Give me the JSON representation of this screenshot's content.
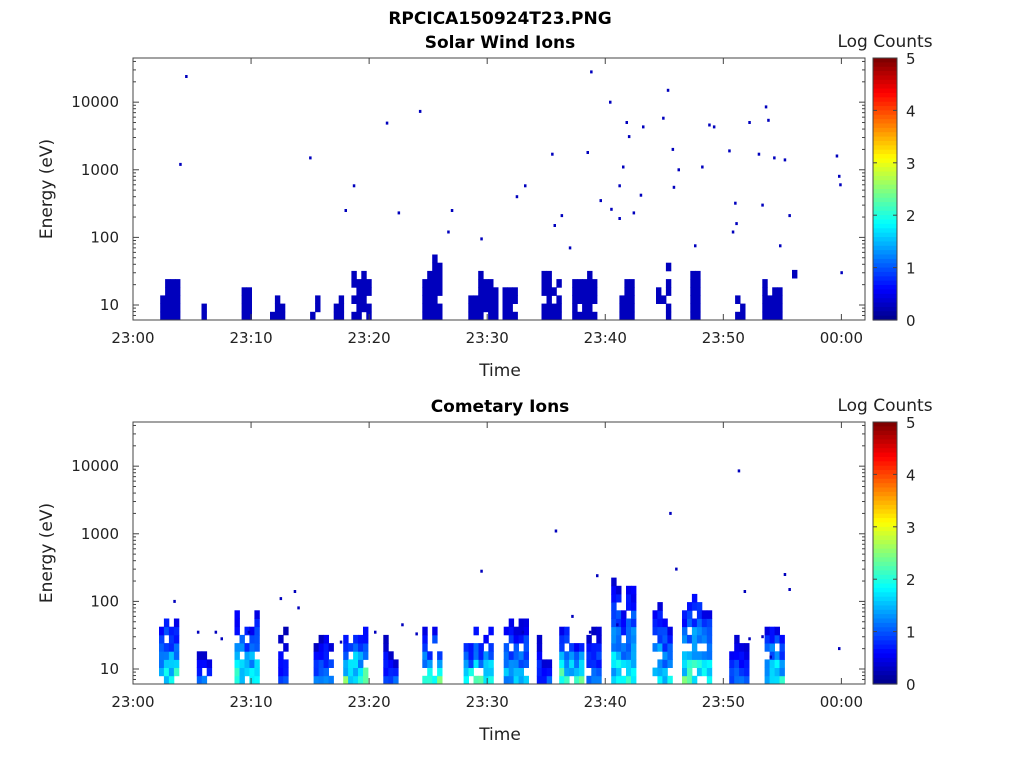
{
  "figure": {
    "title": "RPCICA150924T23.PNG"
  },
  "colorbar": {
    "label": "Log Counts",
    "ticks": [
      "5",
      "4",
      "3",
      "2",
      "1",
      "0"
    ],
    "colormap": "jet"
  },
  "chart_data": [
    {
      "type": "heatmap",
      "title": "Solar Wind Ions",
      "xlabel": "Time",
      "ylabel": "Energy (eV)",
      "xticks": [
        "23:00",
        "23:10",
        "23:20",
        "23:30",
        "23:40",
        "23:50",
        "00:00"
      ],
      "yticks": [
        "10",
        "100",
        "1000",
        "10000"
      ],
      "yscale": "log",
      "xlim_minutes": [
        0,
        62
      ],
      "ylim_eV": [
        6,
        45000
      ],
      "clim": [
        0,
        5
      ],
      "points": [
        [
          4.5,
          24000,
          0.3
        ],
        [
          4,
          1200,
          0.3
        ],
        [
          15,
          1500,
          0.3
        ],
        [
          18,
          250,
          0.3
        ],
        [
          18.7,
          580,
          0.3
        ],
        [
          21.5,
          4900,
          0.3
        ],
        [
          22.5,
          230,
          0.3
        ],
        [
          24.3,
          7300,
          0.3
        ],
        [
          27,
          250,
          0.3
        ],
        [
          26.7,
          120,
          0.3
        ],
        [
          29.5,
          95,
          0.3
        ],
        [
          32.5,
          400,
          0.3
        ],
        [
          33.2,
          580,
          0.3
        ],
        [
          35.5,
          1700,
          0.3
        ],
        [
          35.7,
          150,
          0.3
        ],
        [
          36.3,
          210,
          0.3
        ],
        [
          37,
          70,
          0.3
        ],
        [
          38.5,
          1800,
          0.3
        ],
        [
          38.8,
          28000,
          0.3
        ],
        [
          39.6,
          350,
          0.3
        ],
        [
          40.5,
          260,
          0.3
        ],
        [
          40.4,
          10000,
          0.3
        ],
        [
          41.2,
          580,
          0.3
        ],
        [
          41.5,
          1100,
          0.3
        ],
        [
          41.8,
          5000,
          0.3
        ],
        [
          42,
          3100,
          0.3
        ],
        [
          42.4,
          230,
          0.3
        ],
        [
          43.0,
          420,
          0.3
        ],
        [
          43.2,
          4300,
          0.3
        ],
        [
          41.2,
          190,
          0.3
        ],
        [
          44.9,
          5800,
          0.3
        ],
        [
          45.3,
          15000,
          0.3
        ],
        [
          45.7,
          2000,
          0.3
        ],
        [
          45.8,
          550,
          0.3
        ],
        [
          46.2,
          1000,
          0.3
        ],
        [
          47.6,
          75,
          0.3
        ],
        [
          48.2,
          1100,
          0.3
        ],
        [
          48.8,
          4600,
          0.3
        ],
        [
          49.2,
          4300,
          0.3
        ],
        [
          50.5,
          1900,
          0.3
        ],
        [
          50.8,
          120,
          0.3
        ],
        [
          51.1,
          160,
          0.3
        ],
        [
          51.0,
          320,
          0.3
        ],
        [
          52.2,
          5000,
          0.3
        ],
        [
          53.0,
          1700,
          0.3
        ],
        [
          53.3,
          300,
          0.3
        ],
        [
          53.6,
          8500,
          0.3
        ],
        [
          53.8,
          5400,
          0.3
        ],
        [
          54.3,
          1500,
          0.3
        ],
        [
          54.8,
          75,
          0.3
        ],
        [
          55.2,
          1400,
          0.3
        ],
        [
          55.6,
          210,
          0.3
        ],
        [
          59.6,
          1600,
          0.3
        ],
        [
          59.8,
          800,
          0.3
        ],
        [
          59.9,
          600,
          0.3
        ],
        [
          60.0,
          30,
          0.3
        ]
      ],
      "bursts": [
        [
          2.3,
          1.3,
          6,
          25,
          0.3
        ],
        [
          5.8,
          0.4,
          6,
          12,
          0.3
        ],
        [
          9.2,
          0.6,
          6,
          24,
          0.3
        ],
        [
          11.6,
          1.0,
          6,
          12,
          0.3
        ],
        [
          15.0,
          0.5,
          6,
          12,
          0.3
        ],
        [
          17.0,
          0.8,
          6,
          20,
          0.3
        ],
        [
          18.5,
          1.6,
          6,
          28,
          0.3
        ],
        [
          24.5,
          1.5,
          6,
          55,
          0.3
        ],
        [
          28.4,
          2.3,
          6,
          36,
          0.3
        ],
        [
          31.3,
          1.2,
          6,
          18,
          0.3
        ],
        [
          34.6,
          1.3,
          6,
          27,
          0.3
        ],
        [
          37.2,
          1.8,
          6,
          28,
          0.3
        ],
        [
          41.2,
          0.9,
          6,
          30,
          0.3
        ],
        [
          44.3,
          1.0,
          6,
          40,
          0.3
        ],
        [
          47.2,
          0.8,
          6,
          30,
          0.3
        ],
        [
          51.0,
          0.5,
          6,
          16,
          0.3
        ],
        [
          53.3,
          1.6,
          6,
          24,
          0.3
        ],
        [
          55.4,
          0.8,
          25,
          45,
          0.3
        ],
        [
          49.6,
          0.6,
          25,
          32,
          0.3
        ]
      ]
    },
    {
      "type": "heatmap",
      "title": "Cometary Ions",
      "xlabel": "Time",
      "ylabel": "Energy (eV)",
      "xticks": [
        "23:00",
        "23:10",
        "23:20",
        "23:30",
        "23:40",
        "23:50",
        "00:00"
      ],
      "yticks": [
        "10",
        "100",
        "1000",
        "10000"
      ],
      "yscale": "log",
      "xlim_minutes": [
        0,
        62
      ],
      "ylim_eV": [
        6,
        45000
      ],
      "clim": [
        0,
        5
      ],
      "points": [
        [
          3.5,
          100,
          0.3
        ],
        [
          5.5,
          35,
          0.3
        ],
        [
          7,
          35,
          0.3
        ],
        [
          7.5,
          28,
          0.3
        ],
        [
          9.8,
          35,
          0.3
        ],
        [
          12.5,
          110,
          0.3
        ],
        [
          13.7,
          140,
          0.3
        ],
        [
          14,
          80,
          0.3
        ],
        [
          17.6,
          25,
          0.3
        ],
        [
          20.5,
          35,
          0.3
        ],
        [
          22.8,
          45,
          0.3
        ],
        [
          24.0,
          33,
          0.3
        ],
        [
          29.5,
          280,
          0.3
        ],
        [
          33.0,
          35,
          0.3
        ],
        [
          35.8,
          1100,
          0.3
        ],
        [
          37.2,
          60,
          0.3
        ],
        [
          38.7,
          35,
          0.3
        ],
        [
          39.3,
          240,
          0.3
        ],
        [
          41.0,
          45,
          0.3
        ],
        [
          45.5,
          2000,
          0.3
        ],
        [
          46.0,
          300,
          0.3
        ],
        [
          51.3,
          8500,
          0.3
        ],
        [
          51.8,
          140,
          0.3
        ],
        [
          52.2,
          28,
          0.3
        ],
        [
          53.3,
          30,
          0.3
        ],
        [
          54.0,
          15,
          0.3
        ],
        [
          55.2,
          250,
          0.3
        ],
        [
          55.6,
          150,
          0.3
        ],
        [
          59.8,
          20,
          0.3
        ]
      ],
      "bursts": [
        [
          2.2,
          1.5,
          6,
          62,
          1.6
        ],
        [
          5.4,
          1.2,
          6,
          22,
          0.9
        ],
        [
          8.6,
          1.8,
          6,
          100,
          1.6
        ],
        [
          12.3,
          0.6,
          6,
          40,
          0.8
        ],
        [
          15.3,
          1.4,
          6,
          38,
          1.0
        ],
        [
          17.8,
          1.8,
          6,
          45,
          1.8
        ],
        [
          21.2,
          1.1,
          6,
          28,
          0.8
        ],
        [
          24.5,
          1.6,
          6,
          42,
          1.7
        ],
        [
          28.0,
          2.2,
          6,
          55,
          1.6
        ],
        [
          31.4,
          1.8,
          6,
          50,
          1.3
        ],
        [
          34.2,
          1.2,
          6,
          28,
          0.8
        ],
        [
          36.1,
          1.9,
          6,
          45,
          1.8
        ],
        [
          38.4,
          1.0,
          6,
          45,
          1.0
        ],
        [
          40.5,
          1.8,
          6,
          180,
          1.5
        ],
        [
          44.0,
          1.3,
          6,
          100,
          1.4
        ],
        [
          46.5,
          2.2,
          6,
          180,
          1.7
        ],
        [
          50.5,
          1.3,
          6,
          40,
          0.9
        ],
        [
          53.5,
          1.4,
          6,
          40,
          1.6
        ],
        [
          55.6,
          0.6,
          30,
          45,
          1.9
        ]
      ]
    }
  ]
}
